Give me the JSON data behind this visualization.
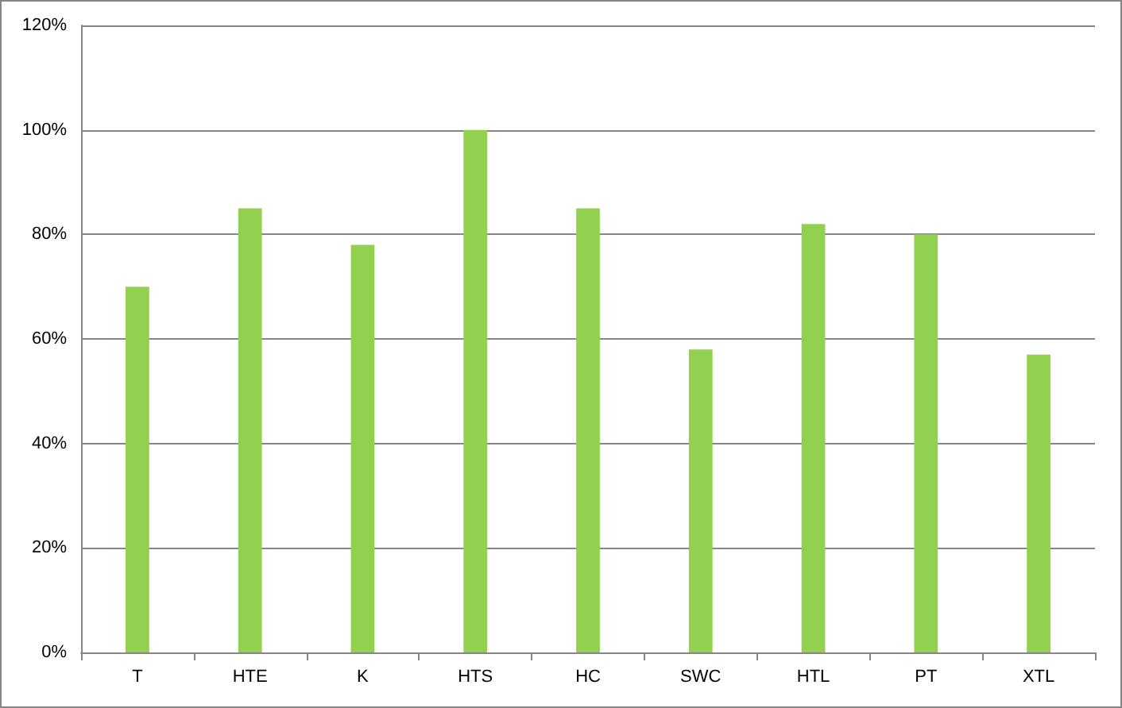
{
  "chart_data": {
    "type": "bar",
    "categories": [
      "T",
      "HTE",
      "K",
      "HTS",
      "HC",
      "SWC",
      "HTL",
      "PT",
      "XTL"
    ],
    "values": [
      70,
      85,
      78,
      100,
      85,
      58,
      82,
      80,
      57
    ],
    "color": "#92d050",
    "ylim": [
      0,
      120
    ],
    "yticks": [
      {
        "value": 0,
        "label": "0%"
      },
      {
        "value": 20,
        "label": "20%"
      },
      {
        "value": 40,
        "label": "40%"
      },
      {
        "value": 60,
        "label": "60%"
      },
      {
        "value": 80,
        "label": "80%"
      },
      {
        "value": 100,
        "label": "100%"
      },
      {
        "value": 120,
        "label": "120%"
      }
    ],
    "grid": "y"
  }
}
